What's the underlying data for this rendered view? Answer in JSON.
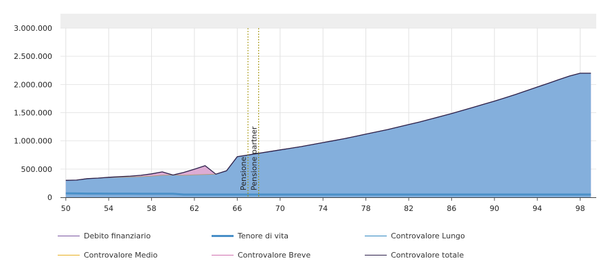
{
  "chart_data": {
    "type": "area",
    "title": "",
    "xlabel": "",
    "ylabel": "",
    "x_ticks": [
      "50",
      "54",
      "58",
      "62",
      "66",
      "70",
      "74",
      "78",
      "82",
      "86",
      "90",
      "94",
      "98"
    ],
    "y_ticks": [
      "0",
      "500.000",
      "1.000.000",
      "1.500.000",
      "2.000.000",
      "2.500.000",
      "3.000.000"
    ],
    "xlim": [
      49.5,
      99.5
    ],
    "ylim": [
      0,
      3000000
    ],
    "grid": true,
    "legend_position": "bottom",
    "x": [
      50,
      51,
      52,
      53,
      54,
      55,
      56,
      57,
      58,
      59,
      60,
      61,
      62,
      63,
      64,
      65,
      66,
      67,
      68,
      69,
      70,
      71,
      72,
      73,
      74,
      75,
      76,
      77,
      78,
      79,
      80,
      81,
      82,
      83,
      84,
      85,
      86,
      87,
      88,
      89,
      90,
      91,
      92,
      93,
      94,
      95,
      96,
      97,
      98,
      99
    ],
    "series": [
      {
        "name": "Debito finanziario",
        "color": "#7a55a0",
        "values": [
          0,
          0,
          0,
          0,
          0,
          0,
          0,
          0,
          0,
          0,
          0,
          0,
          0,
          0,
          0,
          0,
          0,
          0,
          0,
          0,
          0,
          0,
          0,
          0,
          0,
          0,
          0,
          0,
          0,
          0,
          0,
          0,
          0,
          0,
          0,
          0,
          0,
          0,
          0,
          0,
          0,
          0,
          0,
          0,
          0,
          0,
          0,
          0,
          0,
          0
        ]
      },
      {
        "name": "Tenore di vita",
        "color": "#4a90c8",
        "values": [
          70000,
          68000,
          66000,
          65000,
          64000,
          63000,
          63000,
          62000,
          62000,
          62000,
          62000,
          48000,
          48000,
          48000,
          48000,
          48000,
          48000,
          48000,
          48000,
          48000,
          48000,
          48000,
          48000,
          48000,
          48000,
          48000,
          48000,
          48000,
          48000,
          48000,
          48000,
          48000,
          48000,
          48000,
          48000,
          48000,
          48000,
          48000,
          48000,
          48000,
          48000,
          48000,
          48000,
          48000,
          48000,
          48000,
          48000,
          48000,
          48000,
          48000
        ]
      },
      {
        "name": "Controvalore Lungo",
        "color": "#2e86c1",
        "values": [
          300000,
          305000,
          330000,
          340000,
          350000,
          355000,
          360000,
          365000,
          375000,
          390000,
          395000,
          390000,
          398000,
          405000,
          410000,
          470000,
          720000,
          750000,
          780000,
          810000,
          840000,
          870000,
          900000,
          935000,
          970000,
          1005000,
          1040000,
          1080000,
          1120000,
          1160000,
          1200000,
          1245000,
          1290000,
          1335000,
          1385000,
          1435000,
          1485000,
          1540000,
          1595000,
          1650000,
          1705000,
          1765000,
          1825000,
          1890000,
          1955000,
          2020000,
          2085000,
          2150000,
          2200000,
          2200000
        ]
      },
      {
        "name": "Controvalore Medio",
        "color": "#e8b020",
        "values": [
          0,
          0,
          0,
          0,
          0,
          0,
          0,
          0,
          0,
          0,
          0,
          0,
          0,
          0,
          0,
          0,
          0,
          0,
          0,
          0,
          0,
          0,
          0,
          0,
          0,
          0,
          0,
          0,
          0,
          0,
          0,
          0,
          0,
          0,
          0,
          0,
          0,
          0,
          0,
          0,
          0,
          0,
          0,
          0,
          0,
          0,
          0,
          0,
          0,
          0
        ]
      },
      {
        "name": "Controvalore Breve",
        "color": "#d070b0",
        "values": [
          0,
          0,
          0,
          0,
          5000,
          10000,
          15000,
          25000,
          40000,
          60000,
          0,
          50000,
          100000,
          155000,
          0,
          0,
          0,
          0,
          0,
          0,
          0,
          0,
          0,
          0,
          0,
          0,
          0,
          0,
          0,
          0,
          0,
          0,
          0,
          0,
          0,
          0,
          0,
          0,
          0,
          0,
          0,
          0,
          0,
          0,
          0,
          0,
          0,
          0,
          0,
          0
        ]
      },
      {
        "name": "Controvalore totale",
        "color": "#2b1f4a",
        "values": [
          300000,
          305000,
          330000,
          340000,
          355000,
          365000,
          375000,
          390000,
          415000,
          450000,
          395000,
          440000,
          498000,
          560000,
          410000,
          470000,
          720000,
          750000,
          780000,
          810000,
          840000,
          870000,
          900000,
          935000,
          970000,
          1005000,
          1040000,
          1080000,
          1120000,
          1160000,
          1200000,
          1245000,
          1290000,
          1335000,
          1385000,
          1435000,
          1485000,
          1540000,
          1595000,
          1650000,
          1705000,
          1765000,
          1825000,
          1890000,
          1955000,
          2020000,
          2085000,
          2150000,
          2200000,
          2200000
        ]
      }
    ],
    "annotations": [
      {
        "label": "Pensione",
        "x": 67,
        "color": "#a09000"
      },
      {
        "label": "Pensione partner",
        "x": 68,
        "color": "#a09000"
      }
    ]
  },
  "legend": [
    {
      "label": "Debito finanziario",
      "color": "#7a55a0",
      "width": 1
    },
    {
      "label": "Tenore di vita",
      "color": "#4a90c8",
      "width": 3
    },
    {
      "label": "Controvalore Lungo",
      "color": "#2e86c1",
      "width": 1
    },
    {
      "label": "Controvalore Medio",
      "color": "#e8b020",
      "width": 1
    },
    {
      "label": "Controvalore Breve",
      "color": "#d070b0",
      "width": 1
    },
    {
      "label": "Controvalore totale",
      "color": "#2b1f4a",
      "width": 1
    }
  ]
}
